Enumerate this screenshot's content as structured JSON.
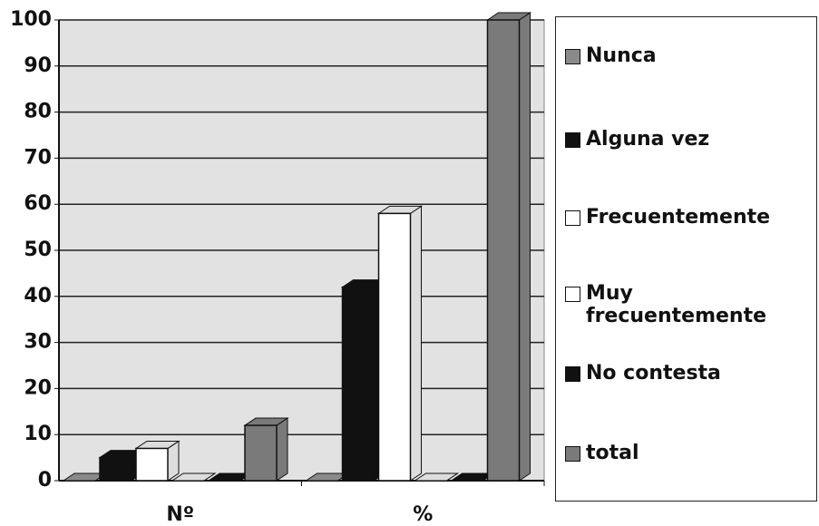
{
  "chart_data": {
    "type": "bar3d",
    "categories": [
      "Nº",
      "%"
    ],
    "series": [
      {
        "name": "Nunca",
        "color": "#8a8a8a",
        "values": [
          0,
          0
        ]
      },
      {
        "name": "Alguna vez",
        "color": "#111111",
        "values": [
          5,
          42
        ]
      },
      {
        "name": "Frecuentemente",
        "color": "#ffffff",
        "values": [
          7,
          58
        ]
      },
      {
        "name": "Muy frecuentemente",
        "color": "#ffffff",
        "values": [
          0,
          0
        ]
      },
      {
        "name": "No contesta",
        "color": "#111111",
        "values": [
          0,
          0
        ]
      },
      {
        "name": "total",
        "color": "#7a7a7a",
        "values": [
          12,
          100
        ]
      }
    ],
    "ylim": [
      0,
      100
    ],
    "yticks": [
      0,
      10,
      20,
      30,
      40,
      50,
      60,
      70,
      80,
      90,
      100
    ],
    "grid": true,
    "legend": "right"
  }
}
